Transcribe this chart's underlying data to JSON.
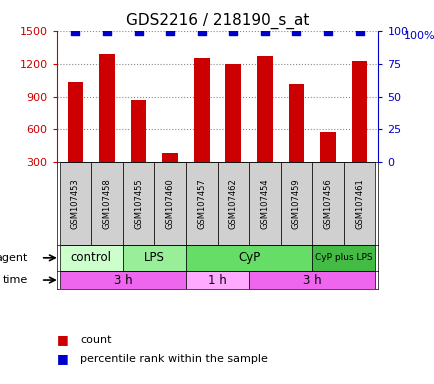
{
  "title": "GDS2216 / 218190_s_at",
  "samples": [
    "GSM107453",
    "GSM107458",
    "GSM107455",
    "GSM107460",
    "GSM107457",
    "GSM107462",
    "GSM107454",
    "GSM107459",
    "GSM107456",
    "GSM107461"
  ],
  "counts": [
    1030,
    1290,
    870,
    390,
    1250,
    1200,
    1270,
    1010,
    580,
    1220
  ],
  "percentiles": [
    100,
    100,
    100,
    100,
    100,
    100,
    100,
    100,
    100,
    100
  ],
  "bar_color": "#cc0000",
  "dot_color": "#0000cc",
  "ylim_left": [
    300,
    1500
  ],
  "ylim_right": [
    0,
    100
  ],
  "yticks_left": [
    300,
    600,
    900,
    1200,
    1500
  ],
  "yticks_right": [
    0,
    25,
    50,
    75,
    100
  ],
  "agent_groups": [
    {
      "label": "control",
      "start": 0,
      "end": 2,
      "color": "#ccffcc"
    },
    {
      "label": "LPS",
      "start": 2,
      "end": 4,
      "color": "#99ee99"
    },
    {
      "label": "CyP",
      "start": 4,
      "end": 8,
      "color": "#66dd66"
    },
    {
      "label": "CyP plus LPS",
      "start": 8,
      "end": 10,
      "color": "#44bb44"
    }
  ],
  "time_groups": [
    {
      "label": "3 h",
      "start": 0,
      "end": 4,
      "color": "#ee66ee"
    },
    {
      "label": "1 h",
      "start": 4,
      "end": 6,
      "color": "#ffaaff"
    },
    {
      "label": "3 h",
      "start": 6,
      "end": 10,
      "color": "#ee66ee"
    }
  ],
  "legend_count_color": "#cc0000",
  "legend_pct_color": "#0000cc",
  "axis_label_color_left": "#cc0000",
  "axis_label_color_right": "#0000cc",
  "grid_color": "#888888",
  "bar_width": 0.5,
  "dot_size": 8
}
